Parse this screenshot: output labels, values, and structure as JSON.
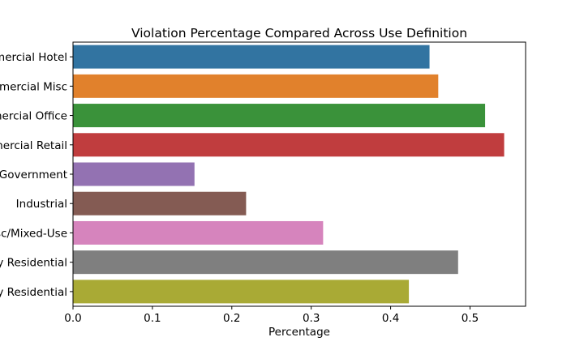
{
  "chart_data": {
    "type": "bar",
    "orientation": "horizontal",
    "title": "Violation Percentage Compared Across Use Definition",
    "xlabel": "Percentage",
    "ylabel": "",
    "xlim": [
      0,
      0.57
    ],
    "xticks": [
      "0.0",
      "0.1",
      "0.2",
      "0.3",
      "0.4",
      "0.5"
    ],
    "grid": false,
    "categories": [
      "Commercial Hotel",
      "Commercial Misc",
      "Commercial Office",
      "Commercial Retail",
      "Government",
      "Industrial",
      "Misc/Mixed-Use",
      "Multi-Family Residential",
      "Single Family Residential"
    ],
    "values": [
      0.449,
      0.46,
      0.519,
      0.543,
      0.153,
      0.218,
      0.315,
      0.485,
      0.423
    ],
    "colors": [
      "#3274a1",
      "#e1812c",
      "#3a923a",
      "#c03d3e",
      "#9372b2",
      "#845b53",
      "#d684bd",
      "#7f7f7f",
      "#a9aa35"
    ]
  }
}
